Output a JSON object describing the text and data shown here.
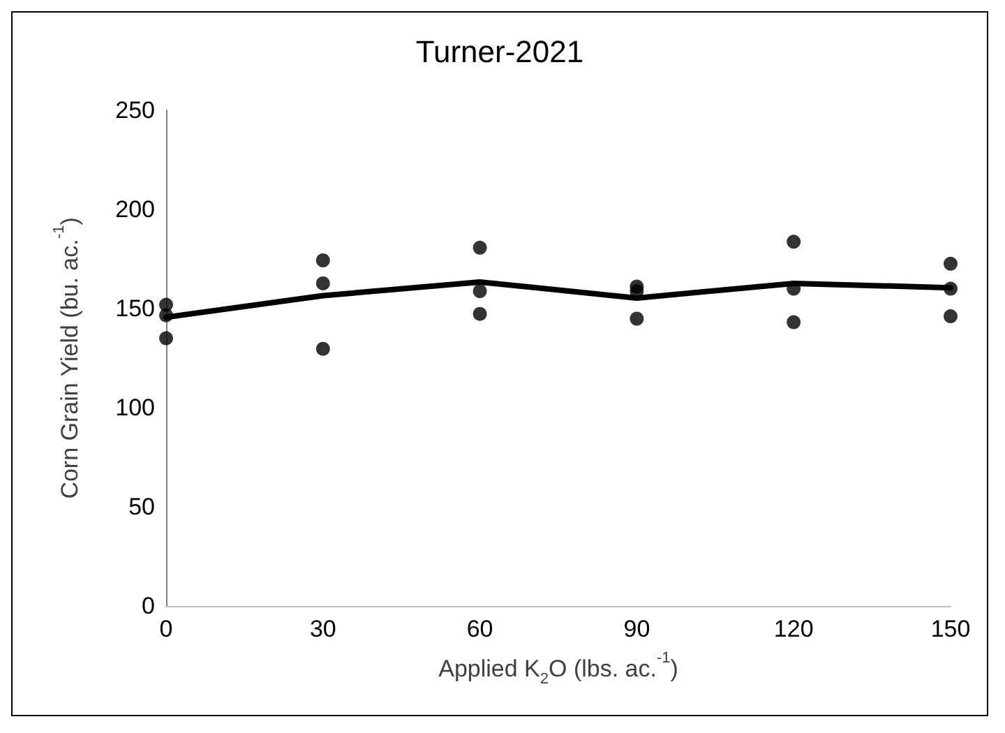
{
  "chart_data": {
    "type": "scatter",
    "title": "Turner-2021",
    "xlabel": "Applied K$_{2}$O (lbs. ac.$^{-1}$)",
    "ylabel": "Corn Grain Yield (bu. ac.$^{-1}$)",
    "xlim": [
      0,
      150
    ],
    "xticks": [
      0,
      30,
      60,
      90,
      120,
      150
    ],
    "ylim": [
      0,
      250
    ],
    "yticks": [
      0,
      50,
      100,
      150,
      200,
      250
    ],
    "grid": false,
    "series": [
      {
        "color": "#000000",
        "marker": "circle",
        "x": [
          0,
          0,
          0,
          30,
          30,
          30,
          60,
          60,
          60,
          90,
          90,
          90,
          120,
          120,
          120,
          150,
          150,
          150
        ],
        "values": [
          151.9,
          146.6,
          135.0,
          174.3,
          162.7,
          129.7,
          180.7,
          158.8,
          147.3,
          161.1,
          158.8,
          144.9,
          183.7,
          160.0,
          143.1,
          172.6,
          160.0,
          146.1
        ]
      },
      {
        "type": "line",
        "color": "#000000",
        "marker": "none",
        "line_style": "solid",
        "x": [
          0,
          30,
          60,
          90,
          120,
          150
        ],
        "values": [
          145.6,
          156.5,
          163.4,
          155.3,
          162.7,
          160.5
        ]
      }
    ]
  }
}
